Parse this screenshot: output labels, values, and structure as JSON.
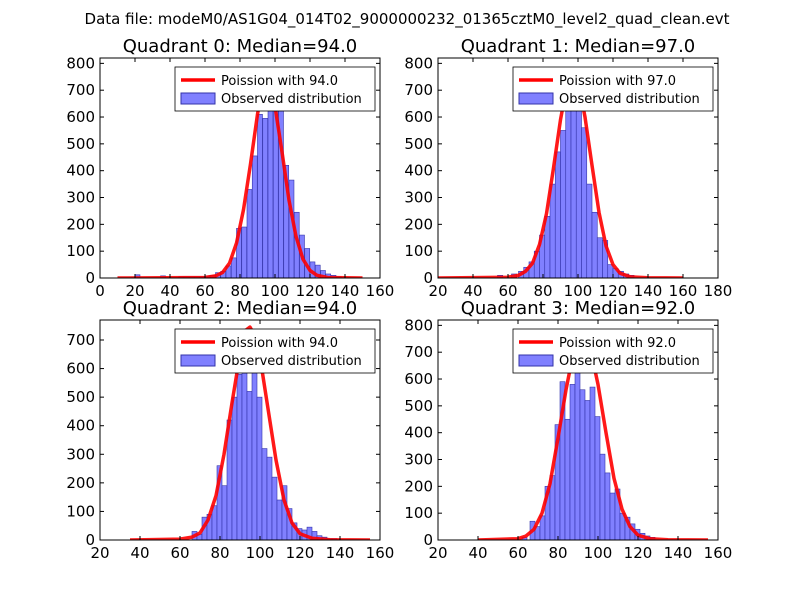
{
  "figure": {
    "suptitle": "Data file: modeM0/AS1G04_014T02_9000000232_01365cztM0_level2_quad_clean.evt"
  },
  "colors": {
    "bar_fill": "#8080ff",
    "bar_edge": "#3333aa",
    "poisson_line": "#ff0000"
  },
  "chart_data": [
    {
      "type": "bar",
      "title": "Quadrant 0: Median=94.0",
      "median": 94.0,
      "xlim": [
        0,
        160
      ],
      "ylim": [
        0,
        820
      ],
      "xticks": [
        0,
        20,
        40,
        60,
        80,
        100,
        120,
        140,
        160
      ],
      "yticks": [
        0,
        100,
        200,
        300,
        400,
        500,
        600,
        700,
        800
      ],
      "legend": [
        "Poission with 94.0",
        "Observed distribution"
      ],
      "bin_width": 2.84,
      "bins": [
        [
          20.0,
          12
        ],
        [
          34.6,
          8
        ],
        [
          45.0,
          5
        ],
        [
          48.0,
          5
        ],
        [
          51.0,
          5
        ],
        [
          54.0,
          5
        ],
        [
          57.0,
          5
        ],
        [
          60.0,
          8
        ],
        [
          63.0,
          10
        ],
        [
          66.0,
          20
        ],
        [
          69.0,
          25
        ],
        [
          72.0,
          45
        ],
        [
          75.0,
          75
        ],
        [
          78.0,
          185
        ],
        [
          81.0,
          190
        ],
        [
          84.0,
          330
        ],
        [
          87.0,
          455
        ],
        [
          90.0,
          610
        ],
        [
          93.0,
          595
        ],
        [
          96.0,
          700
        ],
        [
          99.0,
          700
        ],
        [
          102.0,
          655
        ],
        [
          105.0,
          420
        ],
        [
          108.0,
          365
        ],
        [
          111.0,
          245
        ],
        [
          114.0,
          160
        ],
        [
          117.0,
          110
        ],
        [
          120.0,
          60
        ],
        [
          123.0,
          48
        ],
        [
          126.0,
          28
        ],
        [
          129.0,
          15
        ],
        [
          132.0,
          10
        ],
        [
          135.0,
          5
        ]
      ],
      "poisson": [
        [
          10,
          0
        ],
        [
          60,
          2
        ],
        [
          66,
          8
        ],
        [
          70,
          20
        ],
        [
          74,
          55
        ],
        [
          78,
          130
        ],
        [
          82,
          255
        ],
        [
          86,
          425
        ],
        [
          90,
          610
        ],
        [
          93,
          720
        ],
        [
          94,
          735
        ],
        [
          95,
          735
        ],
        [
          97,
          715
        ],
        [
          100,
          640
        ],
        [
          104,
          470
        ],
        [
          108,
          290
        ],
        [
          112,
          155
        ],
        [
          116,
          70
        ],
        [
          120,
          28
        ],
        [
          124,
          10
        ],
        [
          130,
          2
        ],
        [
          150,
          0
        ]
      ]
    },
    {
      "type": "bar",
      "title": "Quadrant 1: Median=97.0",
      "median": 97.0,
      "xlim": [
        20,
        180
      ],
      "ylim": [
        0,
        820
      ],
      "xticks": [
        20,
        40,
        60,
        80,
        100,
        120,
        140,
        160,
        180
      ],
      "yticks": [
        0,
        100,
        200,
        300,
        400,
        500,
        600,
        700,
        800
      ],
      "legend": [
        "Poission with 97.0",
        "Observed distribution"
      ],
      "bin_width": 3.0,
      "bins": [
        [
          54.0,
          10
        ],
        [
          62.0,
          15
        ],
        [
          66.0,
          25
        ],
        [
          69.0,
          40
        ],
        [
          72.0,
          60
        ],
        [
          75.0,
          100
        ],
        [
          78.0,
          160
        ],
        [
          81.0,
          230
        ],
        [
          84.0,
          350
        ],
        [
          87.0,
          470
        ],
        [
          90.0,
          550
        ],
        [
          93.0,
          730
        ],
        [
          96.0,
          760
        ],
        [
          99.0,
          740
        ],
        [
          102.0,
          560
        ],
        [
          105.0,
          350
        ],
        [
          108.0,
          245
        ],
        [
          111.0,
          150
        ],
        [
          114.0,
          140
        ],
        [
          117.0,
          50
        ],
        [
          120.0,
          35
        ],
        [
          123.0,
          25
        ],
        [
          126.0,
          15
        ],
        [
          129.0,
          10
        ]
      ],
      "poisson": [
        [
          20,
          0
        ],
        [
          60,
          3
        ],
        [
          66,
          10
        ],
        [
          70,
          25
        ],
        [
          74,
          55
        ],
        [
          78,
          125
        ],
        [
          82,
          240
        ],
        [
          86,
          410
        ],
        [
          90,
          590
        ],
        [
          94,
          730
        ],
        [
          97,
          770
        ],
        [
          100,
          735
        ],
        [
          104,
          600
        ],
        [
          108,
          420
        ],
        [
          112,
          245
        ],
        [
          116,
          120
        ],
        [
          120,
          50
        ],
        [
          124,
          18
        ],
        [
          130,
          4
        ],
        [
          140,
          1
        ],
        [
          160,
          0
        ]
      ]
    },
    {
      "type": "bar",
      "title": "Quadrant 2: Median=94.0",
      "median": 94.0,
      "xlim": [
        20,
        160
      ],
      "ylim": [
        0,
        770
      ],
      "xticks": [
        20,
        40,
        60,
        80,
        100,
        120,
        140,
        160
      ],
      "yticks": [
        0,
        100,
        200,
        300,
        400,
        500,
        600,
        700
      ],
      "legend": [
        "Poission with 94.0",
        "Observed distribution"
      ],
      "bin_width": 2.5,
      "bins": [
        [
          66.0,
          30
        ],
        [
          68.5,
          20
        ],
        [
          71.0,
          80
        ],
        [
          73.5,
          90
        ],
        [
          76.0,
          120
        ],
        [
          78.5,
          260
        ],
        [
          81.0,
          190
        ],
        [
          83.5,
          420
        ],
        [
          86.0,
          500
        ],
        [
          88.5,
          580
        ],
        [
          91.0,
          710
        ],
        [
          93.5,
          520
        ],
        [
          96.0,
          720
        ],
        [
          98.5,
          500
        ],
        [
          101.0,
          320
        ],
        [
          103.5,
          290
        ],
        [
          106.0,
          220
        ],
        [
          108.5,
          140
        ],
        [
          111.0,
          190
        ],
        [
          113.5,
          110
        ],
        [
          116.0,
          60
        ],
        [
          118.5,
          40
        ],
        [
          121.0,
          35
        ],
        [
          123.5,
          45
        ],
        [
          126.0,
          30
        ],
        [
          128.5,
          15
        ],
        [
          131.0,
          10
        ],
        [
          133.5,
          5
        ],
        [
          136.0,
          5
        ]
      ],
      "poisson": [
        [
          35,
          0
        ],
        [
          60,
          3
        ],
        [
          66,
          10
        ],
        [
          70,
          25
        ],
        [
          74,
          70
        ],
        [
          78,
          155
        ],
        [
          82,
          300
        ],
        [
          86,
          480
        ],
        [
          90,
          650
        ],
        [
          93,
          735
        ],
        [
          95,
          745
        ],
        [
          97,
          720
        ],
        [
          100,
          640
        ],
        [
          104,
          460
        ],
        [
          108,
          280
        ],
        [
          112,
          140
        ],
        [
          116,
          60
        ],
        [
          120,
          22
        ],
        [
          126,
          6
        ],
        [
          135,
          1
        ],
        [
          155,
          0
        ]
      ]
    },
    {
      "type": "bar",
      "title": "Quadrant 3: Median=92.0",
      "median": 92.0,
      "xlim": [
        20,
        160
      ],
      "ylim": [
        0,
        820
      ],
      "xticks": [
        20,
        40,
        60,
        80,
        100,
        120,
        140,
        160
      ],
      "yticks": [
        0,
        100,
        200,
        300,
        400,
        500,
        600,
        700,
        800
      ],
      "legend": [
        "Poission with 92.0",
        "Observed distribution"
      ],
      "bin_width": 2.5,
      "bins": [
        [
          62.0,
          10
        ],
        [
          66.0,
          70
        ],
        [
          68.5,
          50
        ],
        [
          71.0,
          90
        ],
        [
          73.5,
          200
        ],
        [
          76.0,
          240
        ],
        [
          78.5,
          430
        ],
        [
          81.0,
          590
        ],
        [
          83.5,
          450
        ],
        [
          86.0,
          580
        ],
        [
          88.5,
          730
        ],
        [
          91.0,
          560
        ],
        [
          93.5,
          520
        ],
        [
          96.0,
          570
        ],
        [
          98.5,
          460
        ],
        [
          101.0,
          320
        ],
        [
          103.5,
          250
        ],
        [
          106.0,
          175
        ],
        [
          108.5,
          190
        ],
        [
          111.0,
          100
        ],
        [
          113.5,
          85
        ],
        [
          116.0,
          60
        ],
        [
          118.5,
          40
        ],
        [
          121.0,
          25
        ],
        [
          123.5,
          15
        ],
        [
          126.0,
          10
        ]
      ],
      "poisson": [
        [
          40,
          0
        ],
        [
          60,
          5
        ],
        [
          64,
          15
        ],
        [
          68,
          40
        ],
        [
          72,
          100
        ],
        [
          76,
          210
        ],
        [
          80,
          380
        ],
        [
          84,
          560
        ],
        [
          88,
          710
        ],
        [
          91,
          770
        ],
        [
          93,
          770
        ],
        [
          96,
          720
        ],
        [
          100,
          580
        ],
        [
          104,
          400
        ],
        [
          108,
          230
        ],
        [
          112,
          115
        ],
        [
          116,
          50
        ],
        [
          120,
          18
        ],
        [
          126,
          5
        ],
        [
          135,
          1
        ],
        [
          155,
          0
        ]
      ]
    }
  ]
}
